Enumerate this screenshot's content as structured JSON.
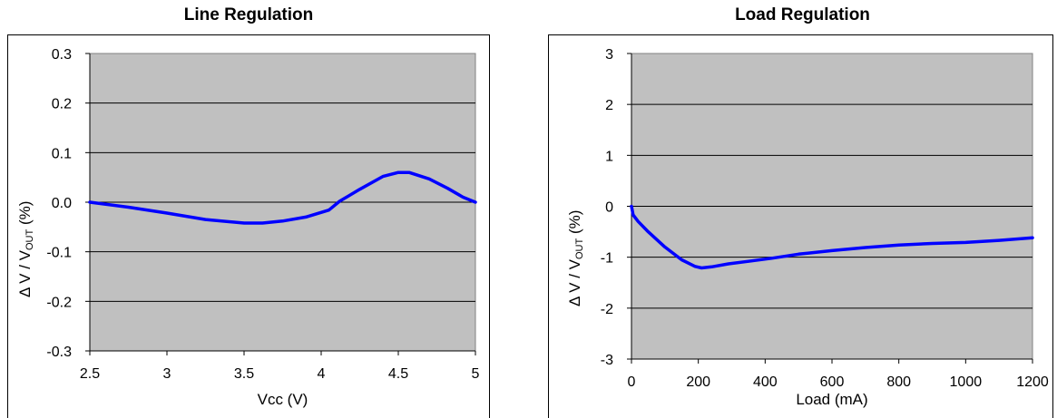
{
  "chart_data": [
    {
      "type": "line",
      "title": "Line Regulation",
      "xlabel": "Vcc (V)",
      "ylabel": {
        "prefix": "Δ V / V",
        "sub": "OUT",
        "suffix": " (%)"
      },
      "xlim": [
        2.5,
        5
      ],
      "ylim": [
        -0.3,
        0.3
      ],
      "xticks": [
        2.5,
        3,
        3.5,
        4,
        4.5,
        5
      ],
      "xtick_labels": [
        "2.5",
        "3",
        "3.5",
        "4",
        "4.5",
        "5"
      ],
      "yticks": [
        -0.3,
        -0.2,
        -0.1,
        0.0,
        0.1,
        0.2,
        0.3
      ],
      "ytick_labels": [
        "-0.3",
        "-0.2",
        "-0.1",
        "0.0",
        "0.1",
        "0.2",
        "0.3"
      ],
      "grid": true,
      "plot_bg": "#c0c0c0",
      "line_color": "#0000ff",
      "series": [
        {
          "x": [
            2.5,
            2.75,
            3.0,
            3.25,
            3.5,
            3.62,
            3.75,
            3.9,
            4.05,
            4.12,
            4.25,
            4.4,
            4.5,
            4.57,
            4.7,
            4.82,
            4.92,
            5.0
          ],
          "y": [
            0.0,
            -0.01,
            -0.022,
            -0.035,
            -0.042,
            -0.042,
            -0.038,
            -0.03,
            -0.016,
            0.002,
            0.026,
            0.052,
            0.06,
            0.06,
            0.047,
            0.028,
            0.01,
            0.0
          ]
        }
      ]
    },
    {
      "type": "line",
      "title": "Load Regulation",
      "xlabel": "Load (mA)",
      "ylabel": {
        "prefix": "Δ V / V",
        "sub": "OUT",
        "suffix": " (%)"
      },
      "xlim": [
        0,
        1200
      ],
      "ylim": [
        -3,
        3
      ],
      "xticks": [
        0,
        200,
        400,
        600,
        800,
        1000,
        1200
      ],
      "xtick_labels": [
        "0",
        "200",
        "400",
        "600",
        "800",
        "1000",
        "1200"
      ],
      "yticks": [
        -3,
        -2,
        -1,
        0,
        1,
        2,
        3
      ],
      "ytick_labels": [
        "-3",
        "-2",
        "-1",
        "0",
        "1",
        "2",
        "3"
      ],
      "grid": true,
      "plot_bg": "#c0c0c0",
      "line_color": "#0000ff",
      "series": [
        {
          "x": [
            0,
            5,
            20,
            50,
            100,
            150,
            190,
            210,
            240,
            290,
            350,
            420,
            500,
            600,
            700,
            800,
            900,
            1000,
            1100,
            1200
          ],
          "y": [
            0,
            -0.17,
            -0.3,
            -0.5,
            -0.8,
            -1.05,
            -1.18,
            -1.21,
            -1.19,
            -1.13,
            -1.08,
            -1.02,
            -0.94,
            -0.87,
            -0.81,
            -0.76,
            -0.73,
            -0.71,
            -0.67,
            -0.62
          ]
        }
      ]
    }
  ]
}
